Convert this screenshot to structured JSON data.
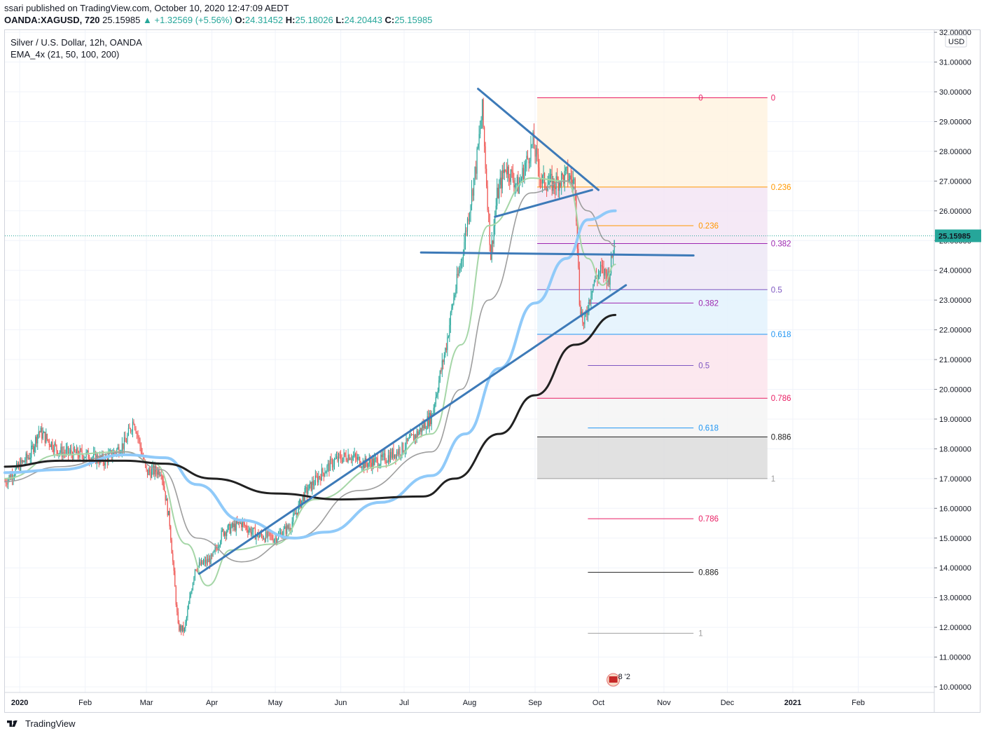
{
  "header": {
    "published": "ssari published on TradingView.com, October 10, 2020 12:47:09 AEDT",
    "symbol": "OANDA:XAGUSD, 720",
    "last": "25.15985",
    "change": "▲ +1.32569 (+5.56%)",
    "o_label": "O:",
    "o_value": "24.31452",
    "h_label": "H:",
    "h_value": "25.18026",
    "l_label": "L:",
    "l_value": "24.20443",
    "c_label": "C:",
    "c_value": "25.15985"
  },
  "legend": {
    "title": "Silver / U.S. Dollar, 12h, OANDA",
    "ema": "EMA_4x (21, 50, 100, 200)"
  },
  "footer": {
    "brand": "TradingView"
  },
  "colors": {
    "up": "#26a69a",
    "down": "#ef5350",
    "trendline": "#3d7ab8",
    "ema21": "#a5d6a7",
    "ema50": "#9e9e9e",
    "ema100": "#90caf9",
    "ema200": "#212121",
    "price_badge": "#26a69a"
  },
  "chart_data": {
    "type": "candlestick",
    "title": "Silver / U.S. Dollar, 12h, OANDA",
    "currency": "USD",
    "price_badge": "25.15985",
    "ylim": [
      10,
      32
    ],
    "y_ticks": [
      "10.00000",
      "11.00000",
      "12.00000",
      "13.00000",
      "14.00000",
      "15.00000",
      "16.00000",
      "17.00000",
      "18.00000",
      "19.00000",
      "20.00000",
      "21.00000",
      "22.00000",
      "23.00000",
      "24.00000",
      "25.00000",
      "26.00000",
      "27.00000",
      "28.00000",
      "29.00000",
      "30.00000",
      "31.00000",
      "32.00000"
    ],
    "x_ticks": [
      "2020",
      "Feb",
      "Mar",
      "Apr",
      "May",
      "Jun",
      "Jul",
      "Aug",
      "Sep",
      "Oct",
      "Nov",
      "Dec",
      "2021",
      "Feb"
    ],
    "price_path": [
      [
        "2019-12-25",
        16.9
      ],
      [
        "2020-01-06",
        17.8
      ],
      [
        "2020-01-10",
        18.6
      ],
      [
        "2020-01-20",
        17.9
      ],
      [
        "2020-02-01",
        17.8
      ],
      [
        "2020-02-10",
        17.6
      ],
      [
        "2020-02-20",
        18.2
      ],
      [
        "2020-02-24",
        19.0
      ],
      [
        "2020-03-01",
        17.2
      ],
      [
        "2020-03-08",
        17.3
      ],
      [
        "2020-03-12",
        15.5
      ],
      [
        "2020-03-16",
        12.0
      ],
      [
        "2020-03-19",
        11.9
      ],
      [
        "2020-03-24",
        14.0
      ],
      [
        "2020-04-01",
        14.3
      ],
      [
        "2020-04-06",
        15.2
      ],
      [
        "2020-04-15",
        15.5
      ],
      [
        "2020-04-22",
        15.1
      ],
      [
        "2020-05-01",
        15.0
      ],
      [
        "2020-05-08",
        15.4
      ],
      [
        "2020-05-15",
        16.5
      ],
      [
        "2020-05-22",
        17.1
      ],
      [
        "2020-05-29",
        17.6
      ],
      [
        "2020-06-05",
        17.8
      ],
      [
        "2020-06-12",
        17.5
      ],
      [
        "2020-06-20",
        17.6
      ],
      [
        "2020-06-30",
        18.0
      ],
      [
        "2020-07-07",
        18.5
      ],
      [
        "2020-07-14",
        19.1
      ],
      [
        "2020-07-21",
        21.5
      ],
      [
        "2020-07-24",
        22.9
      ],
      [
        "2020-07-28",
        24.3
      ],
      [
        "2020-08-04",
        27.5
      ],
      [
        "2020-08-07",
        29.4
      ],
      [
        "2020-08-11",
        24.5
      ],
      [
        "2020-08-14",
        26.5
      ],
      [
        "2020-08-18",
        27.5
      ],
      [
        "2020-08-24",
        26.8
      ],
      [
        "2020-08-31",
        28.3
      ],
      [
        "2020-09-04",
        27.0
      ],
      [
        "2020-09-10",
        26.9
      ],
      [
        "2020-09-16",
        27.2
      ],
      [
        "2020-09-20",
        26.9
      ],
      [
        "2020-09-22",
        23.0
      ],
      [
        "2020-09-24",
        22.1
      ],
      [
        "2020-09-28",
        23.5
      ],
      [
        "2020-10-02",
        24.0
      ],
      [
        "2020-10-06",
        23.8
      ],
      [
        "2020-10-09",
        25.16
      ]
    ],
    "ema_series": [
      {
        "name": "21",
        "values": [
          [
            "2019-12-25",
            17.0
          ],
          [
            "2020-01-20",
            17.8
          ],
          [
            "2020-02-20",
            17.9
          ],
          [
            "2020-03-05",
            17.5
          ],
          [
            "2020-03-20",
            14.8
          ],
          [
            "2020-03-30",
            13.4
          ],
          [
            "2020-04-10",
            14.6
          ],
          [
            "2020-05-01",
            14.8
          ],
          [
            "2020-05-20",
            16.3
          ],
          [
            "2020-06-20",
            17.4
          ],
          [
            "2020-07-14",
            18.5
          ],
          [
            "2020-07-28",
            21.5
          ],
          [
            "2020-08-10",
            25.5
          ],
          [
            "2020-08-30",
            27.1
          ],
          [
            "2020-09-16",
            27.0
          ],
          [
            "2020-09-26",
            24.4
          ],
          [
            "2020-10-03",
            23.5
          ],
          [
            "2020-10-09",
            24.2
          ]
        ]
      },
      {
        "name": "50",
        "values": [
          [
            "2019-12-25",
            16.9
          ],
          [
            "2020-01-20",
            17.4
          ],
          [
            "2020-02-20",
            17.9
          ],
          [
            "2020-03-08",
            17.3
          ],
          [
            "2020-03-25",
            15.0
          ],
          [
            "2020-04-15",
            14.2
          ],
          [
            "2020-05-10",
            15.0
          ],
          [
            "2020-06-10",
            16.6
          ],
          [
            "2020-07-14",
            17.9
          ],
          [
            "2020-07-28",
            20.0
          ],
          [
            "2020-08-10",
            23.0
          ],
          [
            "2020-08-30",
            26.6
          ],
          [
            "2020-09-16",
            27.0
          ],
          [
            "2020-09-26",
            26.0
          ],
          [
            "2020-10-05",
            25.0
          ],
          [
            "2020-10-09",
            24.8
          ]
        ]
      },
      {
        "name": "100",
        "values": [
          [
            "2019-12-25",
            17.2
          ],
          [
            "2020-01-20",
            17.3
          ],
          [
            "2020-02-20",
            17.8
          ],
          [
            "2020-03-10",
            17.7
          ],
          [
            "2020-03-25",
            16.8
          ],
          [
            "2020-04-15",
            15.6
          ],
          [
            "2020-05-10",
            15.0
          ],
          [
            "2020-05-25",
            15.2
          ],
          [
            "2020-06-20",
            16.2
          ],
          [
            "2020-07-14",
            17.1
          ],
          [
            "2020-07-30",
            18.5
          ],
          [
            "2020-08-15",
            20.7
          ],
          [
            "2020-09-01",
            22.9
          ],
          [
            "2020-09-16",
            24.4
          ],
          [
            "2020-09-26",
            25.7
          ],
          [
            "2020-10-09",
            26.0
          ]
        ]
      },
      {
        "name": "200",
        "values": [
          [
            "2019-12-25",
            17.4
          ],
          [
            "2020-01-20",
            17.6
          ],
          [
            "2020-02-20",
            17.6
          ],
          [
            "2020-03-10",
            17.5
          ],
          [
            "2020-04-01",
            17.0
          ],
          [
            "2020-05-01",
            16.5
          ],
          [
            "2020-06-01",
            16.3
          ],
          [
            "2020-07-10",
            16.4
          ],
          [
            "2020-07-25",
            17.0
          ],
          [
            "2020-08-15",
            18.5
          ],
          [
            "2020-09-01",
            19.8
          ],
          [
            "2020-09-20",
            21.5
          ],
          [
            "2020-10-09",
            22.5
          ]
        ]
      }
    ],
    "trendlines": [
      {
        "name": "support",
        "from": [
          "2020-03-26",
          13.8
        ],
        "to": [
          "2020-10-14",
          23.5
        ]
      },
      {
        "name": "resistance",
        "from": [
          "2020-08-05",
          30.1
        ],
        "to": [
          "2020-10-01",
          26.7
        ]
      },
      {
        "name": "wedge-bottom",
        "from": [
          "2020-08-13",
          25.8
        ],
        "to": [
          "2020-09-28",
          26.7
        ]
      },
      {
        "name": "horizontal",
        "from": [
          "2020-07-09",
          24.6
        ],
        "to": [
          "2020-11-15",
          24.5
        ]
      }
    ],
    "fib_retracement_outer": {
      "start_date": "2020-09-02",
      "end_date": "2020-12-20",
      "levels": [
        {
          "label": "0",
          "price": 29.8,
          "color": "#e91e63",
          "fill": "#fff3e0"
        },
        {
          "label": "0.236",
          "price": 26.8,
          "color": "#ff9800",
          "fill": "#f3e5f5"
        },
        {
          "label": "0.382",
          "price": 24.9,
          "color": "#9c27b0",
          "fill": "#ede7f6"
        },
        {
          "label": "0.5",
          "price": 23.35,
          "color": "#7e57c2",
          "fill": "#e3f2fd"
        },
        {
          "label": "0.618",
          "price": 21.85,
          "color": "#2196f3",
          "fill": "#fce4ec"
        },
        {
          "label": "0.786",
          "price": 19.7,
          "color": "#e91e63",
          "fill": "#f5f5f5"
        },
        {
          "label": "0.886",
          "price": 18.4,
          "color": "#212121",
          "fill": "#dcdcdc"
        },
        {
          "label": "1",
          "price": 17.0,
          "color": "#9e9e9e",
          "fill": null
        }
      ]
    },
    "fib_extension_inner": {
      "start_date": "2020-09-26",
      "end_date": "2020-11-15",
      "levels": [
        {
          "label": "0",
          "price": 29.8,
          "color": "#e91e63"
        },
        {
          "label": "0.236",
          "price": 25.5,
          "color": "#ff9800"
        },
        {
          "label": "0.382",
          "price": 22.9,
          "color": "#9c27b0"
        },
        {
          "label": "0.5",
          "price": 20.8,
          "color": "#7e57c2"
        },
        {
          "label": "0.618",
          "price": 18.7,
          "color": "#2196f3"
        },
        {
          "label": "0.786",
          "price": 15.65,
          "color": "#e91e63"
        },
        {
          "label": "0.886",
          "price": 13.85,
          "color": "#212121"
        },
        {
          "label": "1",
          "price": 11.8,
          "color": "#9e9e9e"
        }
      ]
    },
    "event_marker": {
      "date": "2020-10-09",
      "label": "8 '2"
    }
  }
}
